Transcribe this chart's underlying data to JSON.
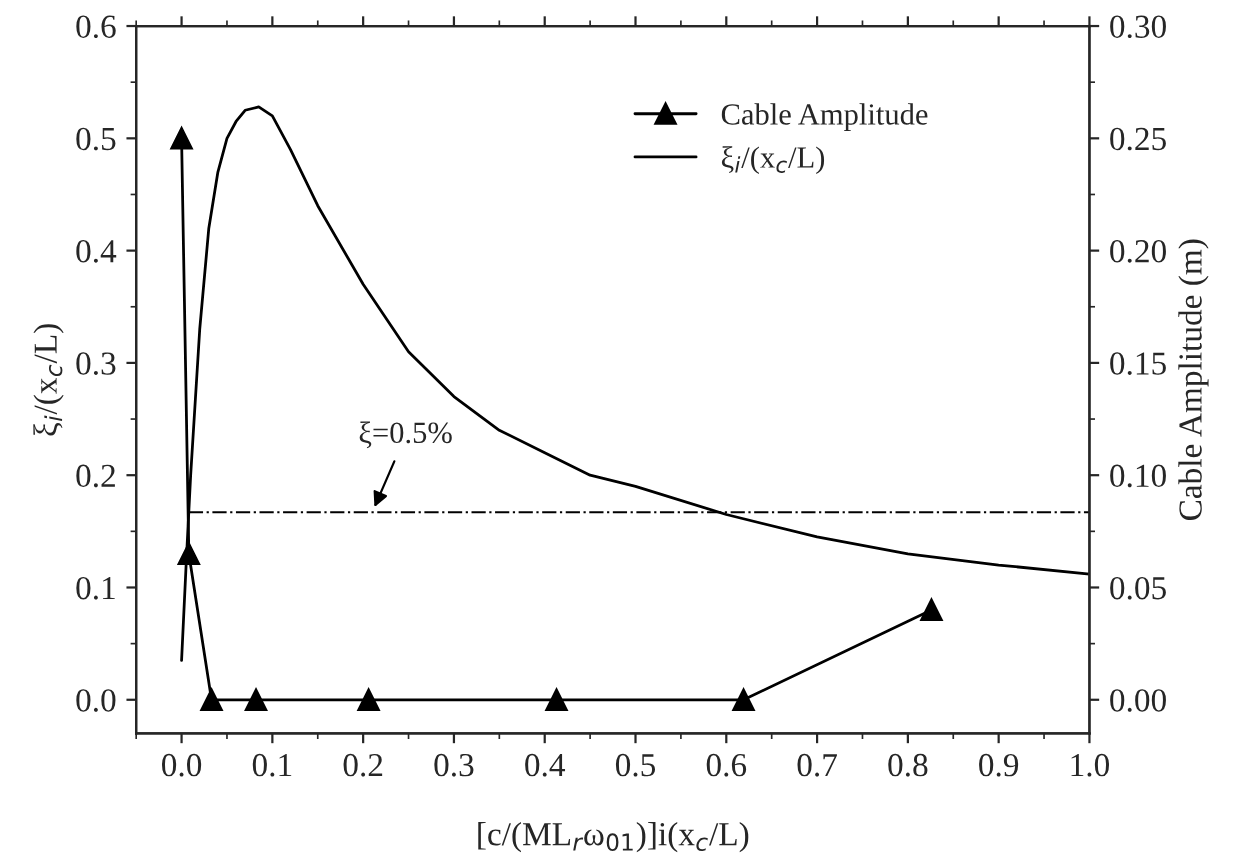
{
  "chart_data": {
    "type": "line",
    "xlabel": "[c/(ML$_{r}$ω$_{01}$)]i(x$_{c}$/L)",
    "ylabel": "ξ$_{i}$/(x$_{c}$/L)",
    "y2label": "Cable Amplitude (m)",
    "xlim": [
      -0.05,
      1.0
    ],
    "xticks": [
      {
        "value": 0.0,
        "label": "0.0"
      },
      0.1,
      0.2,
      0.3,
      0.4,
      0.5,
      0.6,
      0.7,
      0.8,
      0.9,
      {
        "value": 1.0,
        "label": "1.0"
      }
    ],
    "ylim": [
      -0.03,
      0.6
    ],
    "yticks": [
      {
        "value": 0.0,
        "label": "0.0"
      },
      0.1,
      0.2,
      0.3,
      0.4,
      0.5,
      0.6
    ],
    "y2lim": [
      -0.015,
      0.3
    ],
    "y2ticks": [
      {
        "value": 0.0,
        "label": "0.00"
      },
      {
        "value": 0.05,
        "label": "0.05"
      },
      {
        "value": 0.1,
        "label": "0.10"
      },
      {
        "value": 0.15,
        "label": "0.15"
      },
      {
        "value": 0.2,
        "label": "0.20"
      },
      {
        "value": 0.25,
        "label": "0.25"
      },
      {
        "value": 0.3,
        "label": "0.30"
      }
    ],
    "series": [
      {
        "name": "Cable Amplitude",
        "color": "#000000",
        "axis": "y2",
        "marker": "triangle",
        "line_style": "solid",
        "x": [
          0.0,
          0.008,
          0.033,
          0.082,
          0.206,
          0.413,
          0.619,
          0.826
        ],
        "values": [
          0.25,
          0.065,
          0.0,
          0.0,
          0.0,
          0.0,
          0.0,
          0.04
        ]
      },
      {
        "name": "ξ$_{i}$/(x$_{c}$/L)",
        "color": "#000000",
        "marker": "none",
        "line_style": "solid",
        "x": [
          0.0,
          0.005,
          0.01,
          0.02,
          0.03,
          0.04,
          0.05,
          0.06,
          0.07,
          0.085,
          0.1,
          0.12,
          0.15,
          0.2,
          0.25,
          0.3,
          0.35,
          0.4,
          0.45,
          0.5,
          0.6,
          0.7,
          0.8,
          0.9,
          1.0
        ],
        "values": [
          0.035,
          0.12,
          0.2,
          0.33,
          0.42,
          0.47,
          0.5,
          0.515,
          0.525,
          0.528,
          0.52,
          0.49,
          0.44,
          0.37,
          0.31,
          0.27,
          0.24,
          0.22,
          0.2,
          0.19,
          0.165,
          0.145,
          0.13,
          0.12,
          0.112
        ]
      }
    ],
    "ref_lines": [
      {
        "axis": "y",
        "value": 0.167,
        "color": "#000000",
        "line_style": "dashdot"
      }
    ],
    "annotations": [
      {
        "text": "ξ=0.5%",
        "x": 0.21,
        "y": 0.167
      }
    ],
    "legend": "top right",
    "grid": false
  }
}
